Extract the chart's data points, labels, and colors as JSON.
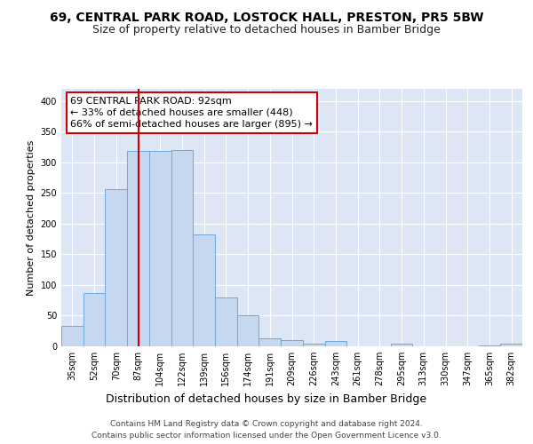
{
  "title1": "69, CENTRAL PARK ROAD, LOSTOCK HALL, PRESTON, PR5 5BW",
  "title2": "Size of property relative to detached houses in Bamber Bridge",
  "xlabel": "Distribution of detached houses by size in Bamber Bridge",
  "ylabel": "Number of detached properties",
  "bar_color": "#c5d8f0",
  "bar_edge_color": "#6fa8d8",
  "categories": [
    "35sqm",
    "52sqm",
    "70sqm",
    "87sqm",
    "104sqm",
    "122sqm",
    "139sqm",
    "156sqm",
    "174sqm",
    "191sqm",
    "209sqm",
    "226sqm",
    "243sqm",
    "261sqm",
    "278sqm",
    "295sqm",
    "313sqm",
    "330sqm",
    "347sqm",
    "365sqm",
    "382sqm"
  ],
  "values": [
    33,
    87,
    256,
    318,
    318,
    320,
    182,
    80,
    51,
    13,
    10,
    5,
    8,
    0,
    0,
    4,
    0,
    0,
    0,
    2,
    4
  ],
  "property_line_x": 3.0,
  "property_line_color": "#cc0000",
  "annotation_line1": "69 CENTRAL PARK ROAD: 92sqm",
  "annotation_line2": "← 33% of detached houses are smaller (448)",
  "annotation_line3": "66% of semi-detached houses are larger (895) →",
  "annotation_box_color": "#ffffff",
  "annotation_box_edge_color": "#cc0000",
  "ylim": [
    0,
    420
  ],
  "yticks": [
    0,
    50,
    100,
    150,
    200,
    250,
    300,
    350,
    400
  ],
  "footer1": "Contains HM Land Registry data © Crown copyright and database right 2024.",
  "footer2": "Contains public sector information licensed under the Open Government Licence v3.0.",
  "background_color": "#dce6f5",
  "grid_color": "#ffffff",
  "title1_fontsize": 10,
  "title2_fontsize": 9,
  "xlabel_fontsize": 9,
  "ylabel_fontsize": 8,
  "tick_fontsize": 7,
  "annotation_fontsize": 8,
  "footer_fontsize": 6.5
}
